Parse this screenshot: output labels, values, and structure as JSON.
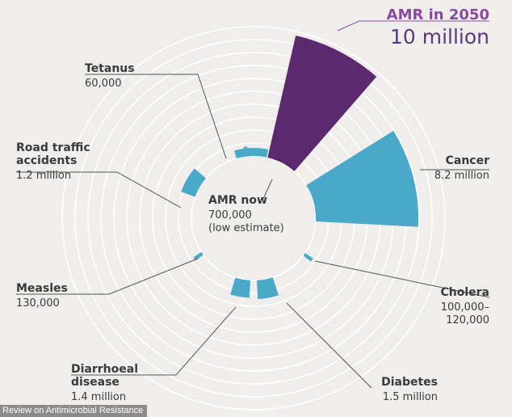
{
  "chart_data": {
    "type": "radial-bar",
    "colors": {
      "amr": "#5b2a6e",
      "amr_label": "#8a4b9e",
      "others": "#4aa8c8",
      "rings": "#ffffff",
      "leader": "#555555",
      "background": "#efeeec"
    },
    "items": [
      {
        "key": "amr2050",
        "title": "AMR in 2050",
        "value_text": "10 million",
        "value_millions": 10.0,
        "color": "amr"
      },
      {
        "key": "cancer",
        "title": "Cancer",
        "value_text": "8.2 million",
        "value_millions": 8.2,
        "color": "others"
      },
      {
        "key": "cholera",
        "title": "Cholera",
        "value_text": "100,000–\n120,000",
        "value_millions": 0.12,
        "color": "others"
      },
      {
        "key": "diabetes",
        "title": "Diabetes",
        "value_text": "1.5 million",
        "value_millions": 1.5,
        "color": "others"
      },
      {
        "key": "diarrhoeal",
        "title": "Diarrhoeal\ndisease",
        "value_text": "1.4 million",
        "value_millions": 1.4,
        "color": "others"
      },
      {
        "key": "measles",
        "title": "Measles",
        "value_text": "130,000",
        "value_millions": 0.13,
        "color": "others"
      },
      {
        "key": "road",
        "title": "Road traffic\naccidents",
        "value_text": "1.2 million",
        "value_millions": 1.2,
        "color": "others"
      },
      {
        "key": "tetanus",
        "title": "Tetanus",
        "value_text": "60,000",
        "value_millions": 0.06,
        "color": "others"
      },
      {
        "key": "amrnow",
        "title": "AMR now",
        "value_text": "700,000\n(low estimate)",
        "value_millions": 0.7,
        "color": "others"
      }
    ]
  },
  "credit": "Review on Antimicrobial Resistance"
}
